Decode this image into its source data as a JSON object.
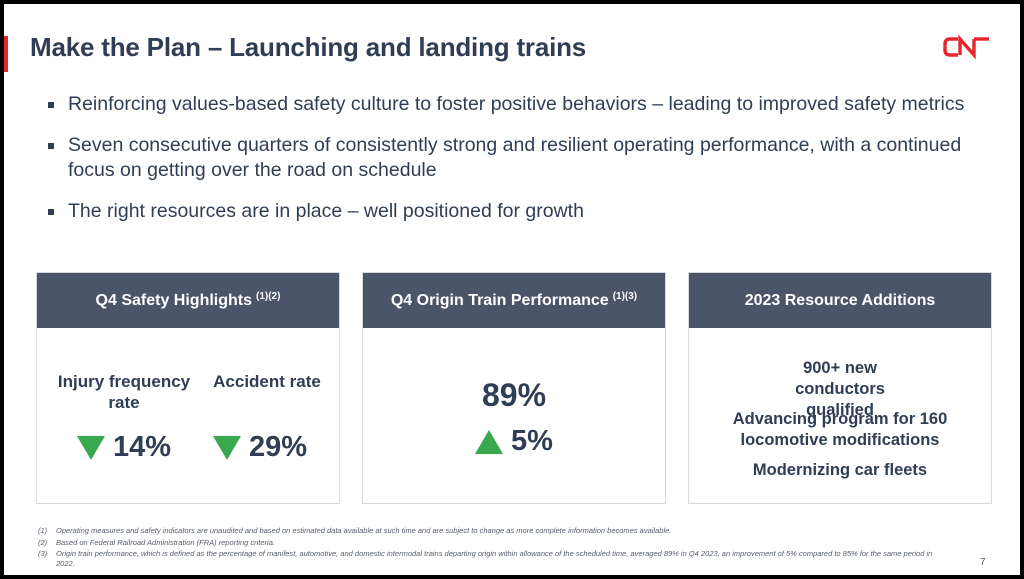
{
  "slide": {
    "title": "Make the Plan – Launching and landing trains",
    "logo_text": "CN",
    "accent_color": "#e5262b",
    "brand_color": "#2f3e55",
    "header_color": "#4a5568",
    "page_number": "7"
  },
  "bullets": [
    "Reinforcing values-based safety culture to foster positive behaviors – leading to improved safety metrics",
    "Seven consecutive quarters of consistently strong and resilient operating performance, with a continued focus on getting over the road on schedule",
    "The right resources are in place – well positioned for growth"
  ],
  "cards": {
    "safety": {
      "title": "Q4 Safety Highlights",
      "refs": "(1)(2)",
      "injury_label": "Injury frequency rate",
      "injury_value": "14%",
      "injury_icon": "down-triangle-icon",
      "accident_label": "Accident rate",
      "accident_value": "29%",
      "accident_icon": "down-triangle-icon"
    },
    "origin": {
      "title": "Q4 Origin Train Performance",
      "refs": "(1)(3)",
      "value": "89%",
      "change": "5%",
      "change_icon": "up-triangle-icon"
    },
    "resources": {
      "title": "2023 Resource Additions",
      "line1": "900+ new conductors qualified",
      "line2": "Advancing program for 160 locomotive modifications",
      "line3": "Modernizing car fleets"
    }
  },
  "icon_color": "#3aa84f",
  "footnotes": [
    {
      "num": "(1)",
      "text": "Operating measures and safety indicators are unaudited and based on estimated data available at such time and are subject to change as more complete information becomes available."
    },
    {
      "num": "(2)",
      "text": "Based on Federal Railroad Administration (FRA) reporting criteria."
    },
    {
      "num": "(3)",
      "text": "Origin train performance, which is defined as the percentage of manifest, automotive, and domestic intermodal trains departing origin within allowance of the scheduled time, averaged 89% in Q4 2023, an improvement of 5% compared to 85% for the same period in 2022."
    }
  ]
}
